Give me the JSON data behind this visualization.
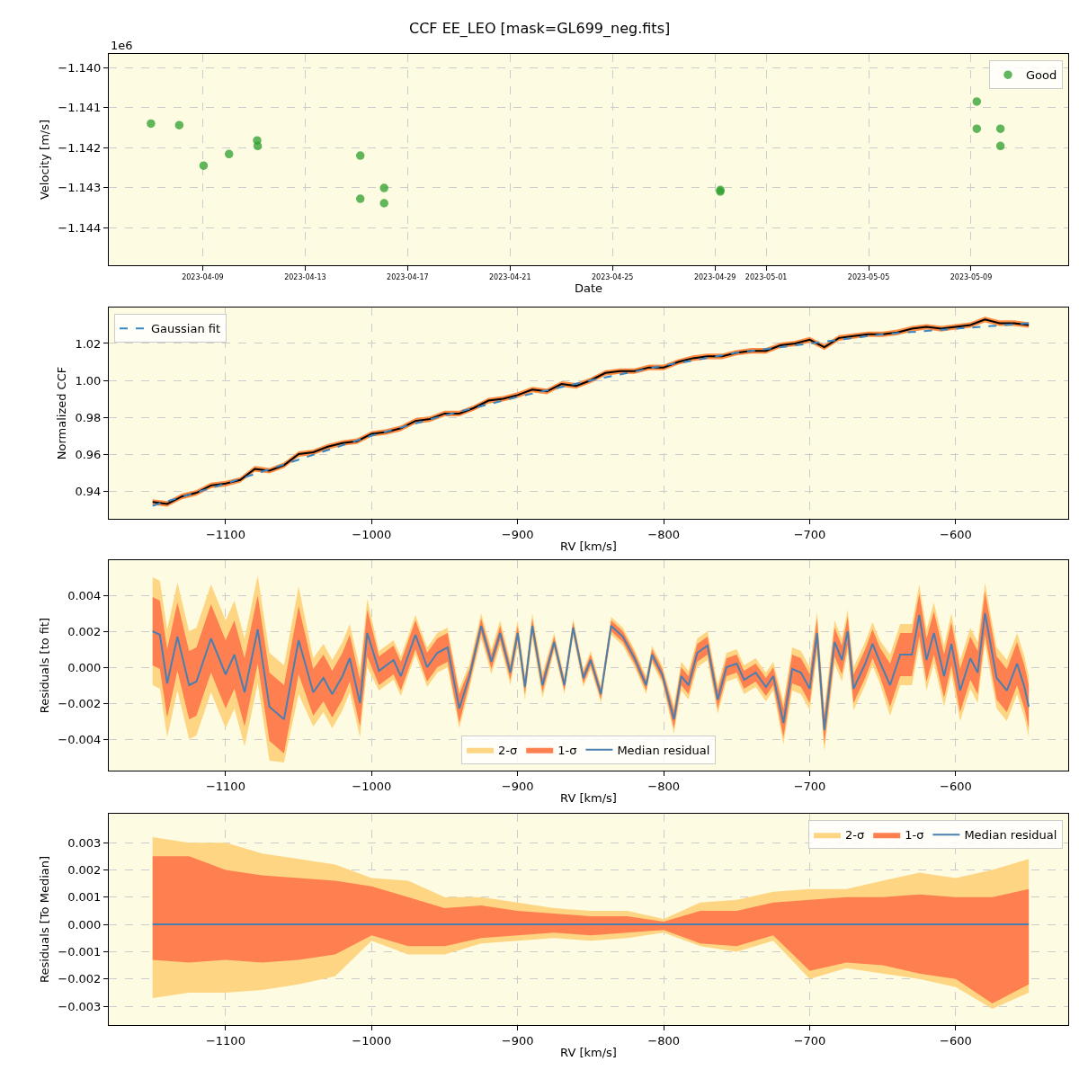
{
  "chart_data": [
    {
      "type": "scatter",
      "title": "CCF EE_LEO [mask=GL699_neg.fits]",
      "xlabel": "Date",
      "ylabel": "Velocity [m/s]",
      "annotations": [
        "1e6"
      ],
      "x": [
        "2023-04-06T23:30",
        "2023-04-08T02:00",
        "2023-04-09T00:50",
        "2023-04-10T00:40",
        "2023-04-11T03:00",
        "2023-04-11T03:30",
        "2023-04-15T03:40",
        "2023-04-15T03:40",
        "2023-04-16T02:00",
        "2023-04-16T02:00",
        "2023-04-29T05:00",
        "2023-04-29T05:00",
        "2023-05-09T05:20",
        "2023-05-09T05:20",
        "2023-05-10T03:30",
        "2023-05-10T03:30"
      ],
      "series": [
        {
          "name": "Good",
          "color": "#2ca02c",
          "values": [
            -1.1414,
            -1.14144,
            -1.14245,
            -1.14216,
            -1.14182,
            -1.14196,
            -1.1422,
            -1.14328,
            -1.14301,
            -1.14339,
            -1.14306,
            -1.1431,
            -1.14085,
            -1.14153,
            -1.14153,
            -1.14196
          ]
        }
      ],
      "xlim": [
        "2023-04-05T08:00",
        "2023-05-12T19:00"
      ],
      "xticks": [
        {
          "value": "2023-04-09",
          "label": "2023-04-09"
        },
        {
          "value": "2023-04-13",
          "label": "2023-04-13"
        },
        {
          "value": "2023-04-17",
          "label": "2023-04-17"
        },
        {
          "value": "2023-04-21",
          "label": "2023-04-21"
        },
        {
          "value": "2023-04-25",
          "label": "2023-04-25"
        },
        {
          "value": "2023-04-29",
          "label": "2023-04-29"
        },
        {
          "value": "2023-05-01",
          "label": "2023-05-01"
        },
        {
          "value": "2023-05-05",
          "label": "2023-05-05"
        },
        {
          "value": "2023-05-09",
          "label": "2023-05-09"
        }
      ],
      "ylim": [
        -1.14494,
        -1.13966
      ],
      "yticks": [
        {
          "value": -1.144,
          "label": "−1.144"
        },
        {
          "value": -1.143,
          "label": "−1.143"
        },
        {
          "value": -1.142,
          "label": "−1.142"
        },
        {
          "value": -1.141,
          "label": "−1.141"
        },
        {
          "value": -1.14,
          "label": "−1.140"
        }
      ],
      "grid": true,
      "legend": "top right",
      "marker": "circle"
    },
    {
      "type": "line",
      "xlabel": "RV [km/s]",
      "ylabel": "Normalized CCF",
      "x": [
        -1150,
        -1140,
        -1130,
        -1120,
        -1110,
        -1100,
        -1090,
        -1080,
        -1070,
        -1060,
        -1050,
        -1040,
        -1030,
        -1020,
        -1010,
        -1000,
        -990,
        -980,
        -970,
        -960,
        -950,
        -940,
        -930,
        -920,
        -910,
        -900,
        -890,
        -880,
        -870,
        -860,
        -850,
        -840,
        -830,
        -820,
        -810,
        -800,
        -790,
        -780,
        -770,
        -760,
        -750,
        -740,
        -730,
        -720,
        -710,
        -700,
        -690,
        -680,
        -670,
        -660,
        -650,
        -640,
        -630,
        -620,
        -610,
        -600,
        -590,
        -580,
        -570,
        -560,
        -550
      ],
      "series": [
        {
          "color": "#ff8c42",
          "values": [
            null,
            null,
            null,
            null,
            null,
            null,
            null,
            null,
            null,
            null,
            null,
            null,
            null,
            null,
            null,
            null,
            null,
            null,
            null,
            null,
            null,
            null,
            null,
            null,
            null,
            null,
            null,
            null,
            null,
            null,
            null,
            null,
            null,
            null,
            null,
            null,
            null,
            null,
            null,
            null,
            null,
            null,
            null,
            null,
            null,
            null,
            null,
            null,
            null,
            null,
            null,
            null,
            null,
            null,
            null,
            null,
            null,
            null,
            null,
            null,
            null
          ],
          "lower": [
            0.9325,
            0.9315,
            0.9355,
            0.9375,
            0.9415,
            0.9425,
            0.9445,
            0.9505,
            0.9495,
            0.9525,
            0.9585,
            0.9595,
            0.9625,
            0.9645,
            0.9655,
            0.9695,
            0.9705,
            0.9725,
            0.9765,
            0.9775,
            0.9805,
            0.9805,
            0.9835,
            0.9875,
            0.9885,
            0.9905,
            0.9935,
            0.9925,
            0.9965,
            0.9955,
            0.9985,
            1.0025,
            1.0035,
            1.0035,
            1.0055,
            1.0055,
            1.0085,
            1.0105,
            1.0115,
            1.0115,
            1.0135,
            1.0145,
            1.0145,
            1.0175,
            1.0185,
            1.0205,
            1.0165,
            1.0215,
            1.0225,
            1.0235,
            1.0235,
            1.0245,
            1.0265,
            1.0275,
            1.0265,
            1.0275,
            1.0285,
            1.0315,
            1.0295,
            1.0295,
            1.0285
          ],
          "upper": [
            0.9355,
            0.9345,
            0.9385,
            0.9405,
            0.9445,
            0.9455,
            0.9475,
            0.9535,
            0.9525,
            0.9555,
            0.9615,
            0.9625,
            0.9655,
            0.9675,
            0.9685,
            0.9725,
            0.9735,
            0.9755,
            0.9795,
            0.9805,
            0.9835,
            0.9835,
            0.9865,
            0.9905,
            0.9915,
            0.9935,
            0.9965,
            0.9955,
            0.9995,
            0.9985,
            1.0015,
            1.0055,
            1.0065,
            1.0065,
            1.0085,
            1.0085,
            1.0115,
            1.0135,
            1.0145,
            1.0145,
            1.0165,
            1.0175,
            1.0175,
            1.0205,
            1.0215,
            1.0235,
            1.0195,
            1.0245,
            1.0255,
            1.0265,
            1.0265,
            1.0275,
            1.0295,
            1.0305,
            1.0295,
            1.0305,
            1.0315,
            1.0345,
            1.0325,
            1.0325,
            1.0315
          ]
        },
        {
          "color": "#000000",
          "values": [
            0.934,
            0.933,
            0.937,
            0.939,
            0.943,
            0.944,
            0.946,
            0.952,
            0.951,
            0.954,
            0.96,
            0.961,
            0.964,
            0.966,
            0.967,
            0.971,
            0.972,
            0.974,
            0.978,
            0.979,
            0.982,
            0.982,
            0.985,
            0.989,
            0.99,
            0.992,
            0.995,
            0.994,
            0.998,
            0.997,
            1.0,
            1.004,
            1.005,
            1.005,
            1.007,
            1.007,
            1.01,
            1.012,
            1.013,
            1.013,
            1.015,
            1.016,
            1.016,
            1.019,
            1.02,
            1.022,
            1.018,
            1.023,
            1.024,
            1.025,
            1.025,
            1.026,
            1.028,
            1.029,
            1.028,
            1.029,
            1.03,
            1.033,
            1.031,
            1.031,
            1.03
          ]
        },
        {
          "name": "Gaussian fit",
          "color": "#3b87c4",
          "line_style": "dashed",
          "x": [
            -1150,
            -1100,
            -1050,
            -1000,
            -950,
            -900,
            -850,
            -800,
            -750,
            -700,
            -650,
            -600,
            -550
          ],
          "values": [
            0.932,
            0.944,
            0.957,
            0.97,
            0.981,
            0.991,
            1.0,
            1.008,
            1.015,
            1.02,
            1.025,
            1.028,
            1.031
          ]
        }
      ],
      "xlim": [
        -1180,
        -523
      ],
      "xticks": [
        {
          "value": -1100,
          "label": "−1100"
        },
        {
          "value": -1000,
          "label": "−1000"
        },
        {
          "value": -900,
          "label": "−900"
        },
        {
          "value": -800,
          "label": "−800"
        },
        {
          "value": -700,
          "label": "−700"
        },
        {
          "value": -600,
          "label": "−600"
        }
      ],
      "ylim": [
        0.9249,
        1.0395
      ],
      "yticks": [
        0.94,
        0.96,
        0.98,
        {
          "value": 1.0,
          "label": "1.00"
        },
        1.02
      ],
      "grid": true,
      "legend": "top left"
    },
    {
      "type": "line",
      "xlabel": "RV [km/s]",
      "ylabel": "Residuals [to fit]",
      "x": [
        -1150,
        -1145,
        -1140,
        -1133,
        -1125,
        -1120,
        -1110,
        -1100,
        -1094,
        -1087,
        -1078,
        -1070,
        -1060,
        -1050,
        -1040,
        -1033,
        -1027,
        -1020,
        -1015,
        -1008,
        -1003,
        -995,
        -985,
        -980,
        -970,
        -962,
        -955,
        -948,
        -940,
        -933,
        -925,
        -918,
        -912,
        -905,
        -900,
        -895,
        -890,
        -883,
        -875,
        -868,
        -862,
        -855,
        -850,
        -843,
        -836,
        -828,
        -820,
        -812,
        -808,
        -801,
        -793,
        -788,
        -783,
        -777,
        -770,
        -763,
        -757,
        -750,
        -745,
        -737,
        -730,
        -725,
        -718,
        -712,
        -706,
        -700,
        -695,
        -690,
        -683,
        -678,
        -674,
        -670,
        -662,
        -657,
        -652,
        -645,
        -638,
        -630,
        -625,
        -620,
        -615,
        -608,
        -603,
        -597,
        -590,
        -585,
        -580,
        -572,
        -565,
        -558,
        -553,
        -550
      ],
      "series": [
        {
          "name": "2-σ",
          "color": "#fed683",
          "values": [
            null,
            null,
            null,
            null,
            null,
            null,
            null,
            null,
            null,
            null,
            null,
            null,
            null,
            null,
            null,
            null,
            null,
            null,
            null,
            null,
            null,
            null,
            null,
            null,
            null,
            null,
            null,
            null,
            null,
            null,
            null,
            null,
            null,
            null,
            null,
            null,
            null,
            null,
            null,
            null,
            null,
            null,
            null,
            null,
            null,
            null,
            null,
            null,
            null,
            null,
            null,
            null,
            null,
            null,
            null,
            null,
            null,
            null,
            null,
            null,
            null,
            null,
            null,
            null,
            null,
            null,
            null,
            null,
            null,
            null,
            null,
            null,
            null,
            null,
            null,
            null,
            null,
            null,
            null,
            null,
            null,
            null,
            null,
            null,
            null,
            null,
            null,
            null,
            null,
            null,
            null,
            null
          ],
          "lower": [
            -0.001,
            -0.0012,
            -0.0039,
            -0.0013,
            -0.004,
            -0.0038,
            -0.0014,
            -0.0034,
            -0.0023,
            -0.0044,
            -0.0009,
            -0.0052,
            -0.0053,
            -0.0015,
            -0.0033,
            -0.0025,
            -0.0034,
            -0.0024,
            -0.0014,
            -0.0039,
            0,
            -0.0013,
            -0.0007,
            -0.0016,
            0.0007,
            -0.0011,
            -0.0003,
            0,
            -0.0034,
            -0.0012,
            0.0016,
            -0.0004,
            0.0012,
            -0.001,
            0.0012,
            -0.0018,
            0.0016,
            -0.0017,
            0.0009,
            -0.0015,
            0.0017,
            -0.0011,
            -0.0001,
            -0.002,
            0.0018,
            0.0012,
            0,
            -0.0015,
            0.0002,
            -0.0009,
            -0.0037,
            -0.0013,
            -0.0018,
            0,
            0.0004,
            -0.0026,
            -0.0008,
            -0.0006,
            -0.0015,
            -0.0011,
            -0.0019,
            -0.0013,
            -0.0043,
            -0.0013,
            -0.0015,
            -0.0024,
            0.0007,
            -0.0047,
            0.0002,
            -0.0008,
            0.0008,
            -0.0024,
            -0.001,
            0.0001,
            -0.0009,
            -0.0027,
            -0.001,
            -0.001,
            0.0012,
            -0.0013,
            0.0002,
            -0.0022,
            -0.0004,
            -0.003,
            -0.0012,
            -0.002,
            0.0013,
            -0.0023,
            -0.003,
            -0.0015,
            -0.0028,
            -0.0039
          ],
          "upper": [
            0.005,
            0.0048,
            0.0021,
            0.0047,
            0.002,
            0.0022,
            0.0046,
            0.0026,
            0.0037,
            0.0016,
            0.0051,
            0.0008,
            0.0001,
            0.0045,
            0.0005,
            0.0013,
            0.0004,
            0.0014,
            0.0024,
            -0.0001,
            0.0038,
            0.0009,
            0.0015,
            0.0006,
            0.0029,
            0.0011,
            0.0019,
            0.0022,
            -0.0012,
            0.0002,
            0.003,
            0.001,
            0.0026,
            0.0004,
            0.0026,
            -0.0004,
            0.003,
            -0.0003,
            0.0019,
            -0.0005,
            0.0027,
            -0.0001,
            0.0009,
            -0.001,
            0.0028,
            0.0022,
            0.001,
            -0.0005,
            0.0012,
            0.0001,
            -0.0021,
            0.0003,
            -0.0002,
            0.0016,
            0.002,
            -0.001,
            0.0008,
            0.001,
            0.0001,
            0.0005,
            -0.0003,
            0.0003,
            -0.0019,
            0.0011,
            0.0009,
            0,
            0.0031,
            -0.0023,
            0.0026,
            0.0016,
            0.0032,
            0,
            0.0014,
            0.0025,
            0.0015,
            0.0007,
            0.0024,
            0.0024,
            0.0046,
            0.0021,
            0.0036,
            0.0012,
            0.003,
            0.0004,
            0.0022,
            0.0014,
            0.0047,
            0.0011,
            0.0004,
            0.0019,
            0.0006,
            -0.0005
          ]
        },
        {
          "name": "1-σ",
          "color": "#fe8050",
          "values": [
            null,
            null,
            null,
            null,
            null,
            null,
            null,
            null,
            null,
            null,
            null,
            null,
            null,
            null,
            null,
            null,
            null,
            null,
            null,
            null,
            null,
            null,
            null,
            null,
            null,
            null,
            null,
            null,
            null,
            null,
            null,
            null,
            null,
            null,
            null,
            null,
            null,
            null,
            null,
            null,
            null,
            null,
            null,
            null,
            null,
            null,
            null,
            null,
            null,
            null,
            null,
            null,
            null,
            null,
            null,
            null,
            null,
            null,
            null,
            null,
            null,
            null,
            null,
            null,
            null,
            null,
            null,
            null,
            null,
            null,
            null,
            null,
            null,
            null,
            null,
            null,
            null,
            null,
            null,
            null,
            null,
            null,
            null,
            null,
            null,
            null,
            null,
            null,
            null,
            null,
            null,
            null
          ],
          "lower": [
            0.0001,
            -0.0001,
            -0.0028,
            -0.0002,
            -0.0029,
            -0.0027,
            -0.0003,
            -0.0023,
            -0.0012,
            -0.0033,
            0.0002,
            -0.0041,
            -0.0048,
            -0.0004,
            -0.0027,
            -0.0019,
            -0.0028,
            -0.0018,
            -0.0008,
            -0.0033,
            0.0006,
            -0.001,
            -0.0004,
            -0.0013,
            0.001,
            -0.0008,
            0,
            0.0003,
            -0.0031,
            -0.0009,
            0.0019,
            -0.0001,
            0.0015,
            -0.0007,
            0.0015,
            -0.0015,
            0.0019,
            -0.0014,
            0.0011,
            -0.0013,
            0.0019,
            -0.0009,
            0.0001,
            -0.0018,
            0.002,
            0.0014,
            0.0002,
            -0.0013,
            0.0004,
            -0.0007,
            -0.0034,
            -0.001,
            -0.0015,
            0.0003,
            0.0007,
            -0.0023,
            -0.0005,
            -0.0003,
            -0.0012,
            -0.0008,
            -0.0016,
            -0.001,
            -0.0039,
            -0.0009,
            -0.0011,
            -0.002,
            0.0011,
            -0.0043,
            0.0006,
            -0.0004,
            0.0012,
            -0.002,
            -0.0006,
            0.0005,
            -0.0005,
            -0.0022,
            -0.0005,
            -0.0005,
            0.0017,
            -0.0008,
            0.0007,
            -0.0017,
            0.0001,
            -0.0025,
            -0.0007,
            -0.0015,
            0.0018,
            -0.0018,
            -0.0025,
            -0.001,
            -0.0023,
            -0.0034
          ],
          "upper": [
            0.0039,
            0.0037,
            0.001,
            0.0036,
            0.0009,
            0.0011,
            0.0035,
            0.0015,
            0.0026,
            0.0005,
            0.004,
            -0.0003,
            -0.001,
            0.0034,
            -0.0001,
            0.0007,
            -0.0002,
            0.0008,
            0.0018,
            -0.0007,
            0.0032,
            0.0006,
            0.0012,
            0.0003,
            0.0026,
            0.0008,
            0.0016,
            0.0019,
            -0.0015,
            -0.0001,
            0.0027,
            0.0007,
            0.0023,
            0.0001,
            0.0023,
            -0.0007,
            0.0027,
            -0.0006,
            0.0017,
            -0.0007,
            0.0025,
            -0.0003,
            0.0007,
            -0.0012,
            0.0026,
            0.002,
            0.0008,
            -0.0007,
            0.001,
            -0.0001,
            -0.0024,
            0,
            -0.0005,
            0.0013,
            0.0017,
            -0.0013,
            0.0005,
            0.0007,
            -0.0002,
            0.0002,
            -0.0006,
            0,
            -0.0023,
            0.0007,
            0.0005,
            -0.0004,
            0.0027,
            -0.0027,
            0.0022,
            0.0012,
            0.0028,
            -0.0004,
            0.001,
            0.0021,
            0.0011,
            0.0002,
            0.0019,
            0.0019,
            0.0041,
            0.0016,
            0.0031,
            0.0007,
            0.0025,
            -0.0001,
            0.0017,
            0.0009,
            0.0042,
            0.0006,
            -0.0001,
            0.0014,
            0.0001,
            -0.001
          ]
        },
        {
          "name": "Median residual",
          "color": "#4a7fb0",
          "values": [
            0.002,
            0.0018,
            -0.0009,
            0.0017,
            -0.001,
            -0.0008,
            0.0016,
            -0.0004,
            0.0007,
            -0.0014,
            0.0021,
            -0.0022,
            -0.0029,
            0.0015,
            -0.0014,
            -0.0006,
            -0.0015,
            -0.0005,
            0.0005,
            -0.002,
            0.0019,
            -0.0002,
            0.0004,
            -0.0005,
            0.0018,
            0,
            0.0008,
            0.0011,
            -0.0023,
            -0.0005,
            0.0023,
            0.0003,
            0.0019,
            -0.0003,
            0.0019,
            -0.0011,
            0.0023,
            -0.001,
            0.0014,
            -0.001,
            0.0022,
            -0.0006,
            0.0004,
            -0.0015,
            0.0023,
            0.0017,
            0.0005,
            -0.001,
            0.0007,
            -0.0004,
            -0.0029,
            -0.0005,
            -0.001,
            0.0008,
            0.0012,
            -0.0018,
            0,
            0.0002,
            -0.0007,
            -0.0003,
            -0.0011,
            -0.0005,
            -0.0031,
            -0.0001,
            -0.0003,
            -0.0012,
            0.0019,
            -0.0035,
            0.0014,
            0.0004,
            0.002,
            -0.0012,
            0.0002,
            0.0013,
            0.0003,
            -0.001,
            0.0007,
            0.0007,
            0.0029,
            0.0004,
            0.0019,
            -0.0005,
            0.0013,
            -0.0013,
            0.0005,
            -0.0003,
            0.003,
            -0.0006,
            -0.0013,
            0.0002,
            -0.0011,
            -0.0022
          ]
        }
      ],
      "xlim": [
        -1180,
        -523
      ],
      "xticks": [
        {
          "value": -1100,
          "label": "−1100"
        },
        {
          "value": -1000,
          "label": "−1000"
        },
        {
          "value": -900,
          "label": "−900"
        },
        {
          "value": -800,
          "label": "−800"
        },
        {
          "value": -700,
          "label": "−700"
        },
        {
          "value": -600,
          "label": "−600"
        }
      ],
      "ylim": [
        -0.00575,
        0.00595
      ],
      "yticks": [
        {
          "value": -0.004,
          "label": "−0.004"
        },
        {
          "value": -0.002,
          "label": "−0.002"
        },
        {
          "value": 0,
          "label": "0.000"
        },
        0.002,
        0.004
      ],
      "grid": true,
      "legend": "bottom"
    },
    {
      "type": "line",
      "xlabel": "RV [km/s]",
      "ylabel": "Residuals [To Median]",
      "x": [
        -1150,
        -1125,
        -1100,
        -1075,
        -1050,
        -1025,
        -1000,
        -975,
        -950,
        -925,
        -900,
        -875,
        -850,
        -825,
        -800,
        -775,
        -750,
        -725,
        -700,
        -675,
        -650,
        -625,
        -600,
        -575,
        -550
      ],
      "series": [
        {
          "name": "2-σ",
          "color": "#fed683",
          "values": [
            null,
            null,
            null,
            null,
            null,
            null,
            null,
            null,
            null,
            null,
            null,
            null,
            null,
            null,
            null,
            null,
            null,
            null,
            null,
            null,
            null,
            null,
            null,
            null,
            null
          ],
          "lower": [
            -0.0027,
            -0.0025,
            -0.0025,
            -0.0024,
            -0.0022,
            -0.0019,
            -0.0006,
            -0.0011,
            -0.0011,
            -0.0007,
            -0.0006,
            -0.0005,
            -0.0006,
            -0.0005,
            -0.0003,
            -0.0008,
            -0.001,
            -0.0006,
            -0.002,
            -0.0016,
            -0.0018,
            -0.002,
            -0.0023,
            -0.0031,
            -0.0025
          ],
          "upper": [
            0.0032,
            0.003,
            0.003,
            0.0026,
            0.0024,
            0.0022,
            0.0017,
            0.0016,
            0.001,
            0.001,
            0.0008,
            0.0006,
            0.0005,
            0.0005,
            0.0002,
            0.0008,
            0.0009,
            0.0012,
            0.0013,
            0.0013,
            0.0016,
            0.0019,
            0.0017,
            0.002,
            0.0024
          ]
        },
        {
          "name": "1-σ",
          "color": "#fe8050",
          "values": [
            null,
            null,
            null,
            null,
            null,
            null,
            null,
            null,
            null,
            null,
            null,
            null,
            null,
            null,
            null,
            null,
            null,
            null,
            null,
            null,
            null,
            null,
            null,
            null,
            null
          ],
          "lower": [
            -0.0013,
            -0.0014,
            -0.0013,
            -0.0014,
            -0.0013,
            -0.0011,
            -0.0004,
            -0.0008,
            -0.0008,
            -0.0005,
            -0.0004,
            -0.0003,
            -0.0004,
            -0.0003,
            -0.0002,
            -0.0007,
            -0.0008,
            -0.0004,
            -0.0017,
            -0.0014,
            -0.0015,
            -0.0018,
            -0.002,
            -0.0029,
            -0.0022
          ],
          "upper": [
            0.0025,
            0.0025,
            0.002,
            0.0018,
            0.0017,
            0.0016,
            0.0014,
            0.001,
            0.0006,
            0.0007,
            0.0005,
            0.0004,
            0.0003,
            0.0003,
            0.0001,
            0.0005,
            0.0005,
            0.0008,
            0.0009,
            0.001,
            0.001,
            0.0011,
            0.001,
            0.001,
            0.0013
          ]
        },
        {
          "name": "Median residual",
          "color": "#4a7fb0",
          "values": [
            0,
            0,
            0,
            0,
            0,
            0,
            0,
            0,
            0,
            0,
            0,
            0,
            0,
            0,
            0,
            0,
            0,
            0,
            0,
            0,
            0,
            0,
            0,
            0,
            0
          ]
        }
      ],
      "xlim": [
        -1180,
        -523
      ],
      "xticks": [
        {
          "value": -1100,
          "label": "−1100"
        },
        {
          "value": -1000,
          "label": "−1000"
        },
        {
          "value": -900,
          "label": "−900"
        },
        {
          "value": -800,
          "label": "−800"
        },
        {
          "value": -700,
          "label": "−700"
        },
        {
          "value": -600,
          "label": "−600"
        }
      ],
      "ylim": [
        -0.00369,
        0.00406
      ],
      "yticks": [
        {
          "value": -0.003,
          "label": "−0.003"
        },
        {
          "value": -0.002,
          "label": "−0.002"
        },
        {
          "value": -0.001,
          "label": "−0.001"
        },
        {
          "value": 0,
          "label": "0.000"
        },
        0.001,
        0.002,
        0.003
      ],
      "grid": true,
      "legend": "top right"
    }
  ]
}
